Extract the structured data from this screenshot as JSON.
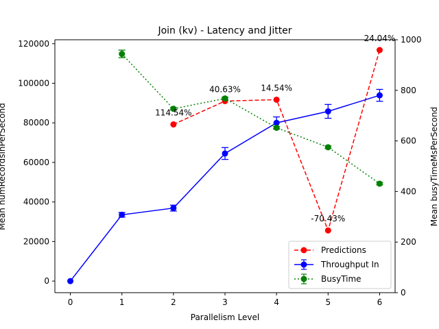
{
  "chart_data": {
    "type": "line",
    "title": "Join (kv) - Latency and Jitter",
    "xlabel": "Parallelism Level",
    "ylabel": "Mean numRecordsInPerSecond",
    "ylabel_right": "Mean busyTimeMsPerSecond",
    "xlim": [
      -0.3,
      6.3
    ],
    "ylim": [
      -5860,
      122000
    ],
    "ylim_right": [
      0,
      1000
    ],
    "x_ticks": [
      "0",
      "1",
      "2",
      "3",
      "4",
      "5",
      "6"
    ],
    "y_ticks": [
      "0",
      "20000",
      "40000",
      "60000",
      "80000",
      "100000",
      "120000"
    ],
    "y_ticks_right": [
      "0",
      "200",
      "400",
      "600",
      "800",
      "1000"
    ],
    "grid": false,
    "legend_position": "lower-right",
    "series": [
      {
        "name": "Predictions",
        "axis": "left",
        "color": "#ff0000",
        "line_style": "dashed",
        "x": [
          2,
          3,
          4,
          5,
          6
        ],
        "values": [
          79200,
          91000,
          91700,
          25600,
          116800
        ]
      },
      {
        "name": "Throughput In",
        "axis": "left",
        "color": "#0000ff",
        "line_style": "solid",
        "x": [
          0,
          1,
          2,
          3,
          4,
          5,
          6
        ],
        "values": [
          0,
          33500,
          36900,
          64500,
          80000,
          85800,
          93900
        ],
        "error": [
          0,
          1200,
          1500,
          3000,
          3000,
          3500,
          3000
        ]
      },
      {
        "name": "BusyTime",
        "axis": "right",
        "color": "#008000",
        "line_style": "dotted",
        "x": [
          1,
          2,
          3,
          4,
          5,
          6
        ],
        "values": [
          944,
          727,
          768,
          652,
          575,
          431
        ],
        "error": [
          15,
          5,
          5,
          5,
          5,
          5
        ]
      }
    ],
    "annotations": [
      {
        "text": "114.54%",
        "x": 2,
        "y": 79200
      },
      {
        "text": "40.63%",
        "x": 3,
        "y": 91000
      },
      {
        "text": "14.54%",
        "x": 4,
        "y": 91700
      },
      {
        "text": "-70.43%",
        "x": 5,
        "y": 25600
      },
      {
        "text": "24.04%",
        "x": 6,
        "y": 116800
      }
    ]
  }
}
